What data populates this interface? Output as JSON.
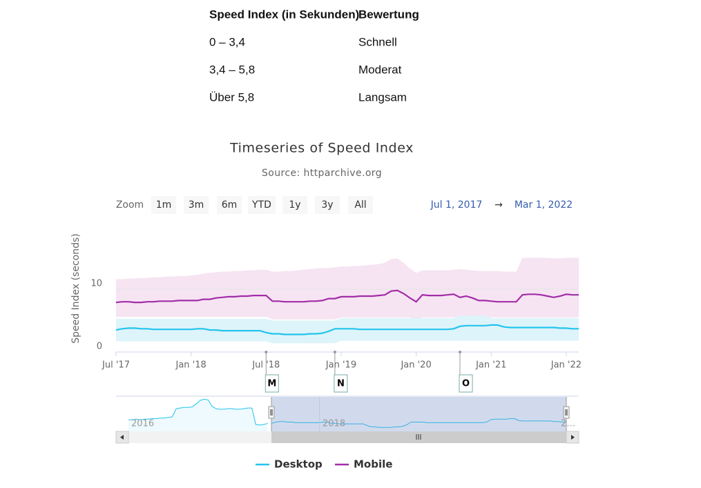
{
  "table": {
    "header": [
      "Speed Index (in Sekunden)",
      "Bewertung"
    ],
    "rows": [
      [
        "0 – 3,4",
        "Schnell"
      ],
      [
        "3,4 – 5,8",
        "Moderat"
      ],
      [
        "Über 5,8",
        "Langsam"
      ]
    ]
  },
  "chart_data": {
    "type": "line",
    "title": "Timeseries of Speed Index",
    "subtitle": "Source: httparchive.org",
    "y_label": "Speed Index (seconds)",
    "x": [
      "2017-07-01",
      "2017-07-15",
      "2017-08-01",
      "2017-08-15",
      "2017-09-01",
      "2017-09-15",
      "2017-10-01",
      "2017-10-15",
      "2017-11-01",
      "2017-11-15",
      "2017-12-01",
      "2017-12-15",
      "2018-01-01",
      "2018-01-15",
      "2018-02-01",
      "2018-02-15",
      "2018-03-01",
      "2018-03-15",
      "2018-04-01",
      "2018-04-15",
      "2018-05-01",
      "2018-05-15",
      "2018-06-01",
      "2018-06-15",
      "2018-07-01",
      "2018-07-15",
      "2018-08-01",
      "2018-08-15",
      "2018-09-01",
      "2018-09-15",
      "2018-10-01",
      "2018-10-15",
      "2018-11-01",
      "2018-11-15",
      "2018-12-01",
      "2018-12-15",
      "2019-01-01",
      "2019-02-01",
      "2019-03-01",
      "2019-04-01",
      "2019-05-01",
      "2019-06-01",
      "2019-07-01",
      "2019-08-01",
      "2019-09-01",
      "2019-10-01",
      "2019-11-01",
      "2019-12-01",
      "2020-01-01",
      "2020-02-01",
      "2020-03-01",
      "2020-04-01",
      "2020-05-01",
      "2020-06-01",
      "2020-07-01",
      "2020-08-01",
      "2020-09-01",
      "2020-10-01",
      "2020-11-01",
      "2020-12-01",
      "2021-01-01",
      "2021-02-01",
      "2021-03-01",
      "2021-04-01",
      "2021-05-01",
      "2021-06-01",
      "2021-07-01",
      "2021-08-01",
      "2021-09-01",
      "2021-10-01",
      "2021-11-01",
      "2021-12-01",
      "2022-01-01",
      "2022-02-01",
      "2022-03-01"
    ],
    "xticks": [
      {
        "value": "2017-07-01",
        "label": "Jul '17"
      },
      {
        "value": "2018-01-01",
        "label": "Jan '18"
      },
      {
        "value": "2018-07-01",
        "label": "Jul '18"
      },
      {
        "value": "2019-01-01",
        "label": "Jan '19"
      },
      {
        "value": "2020-01-01",
        "label": "Jan '20"
      },
      {
        "value": "2021-01-01",
        "label": "Jan '21"
      },
      {
        "value": "2022-01-01",
        "label": "Jan '22"
      }
    ],
    "ylim": [
      0,
      20
    ],
    "yticks": [
      0,
      10
    ],
    "grid": true,
    "series": [
      {
        "name": "Desktop",
        "color": "#21c4ee",
        "values": [
          3.5,
          3.7,
          3.8,
          3.8,
          3.7,
          3.7,
          3.6,
          3.6,
          3.6,
          3.6,
          3.6,
          3.6,
          3.6,
          3.7,
          3.7,
          3.5,
          3.5,
          3.4,
          3.4,
          3.4,
          3.4,
          3.4,
          3.4,
          3.4,
          3.1,
          2.9,
          2.9,
          2.8,
          2.8,
          2.8,
          2.8,
          2.9,
          2.9,
          3.0,
          3.3,
          3.7,
          3.7,
          3.7,
          3.7,
          3.6,
          3.6,
          3.6,
          3.6,
          3.6,
          3.6,
          3.6,
          3.6,
          3.6,
          3.6,
          3.6,
          3.6,
          3.6,
          3.6,
          3.6,
          3.7,
          4.1,
          4.2,
          4.2,
          4.2,
          4.2,
          4.3,
          4.3,
          4.0,
          3.9,
          3.9,
          3.9,
          3.9,
          3.9,
          3.9,
          3.9,
          3.9,
          3.8,
          3.8,
          3.7,
          3.7
        ],
        "band": {
          "color": "#ddf4fa",
          "low": [
            1.7,
            1.7,
            1.7,
            1.7,
            1.7,
            1.7,
            1.7,
            1.7,
            1.7,
            1.7,
            1.7,
            1.7,
            1.7,
            1.7,
            1.7,
            1.7,
            1.7,
            1.7,
            1.7,
            1.7,
            1.7,
            1.7,
            1.7,
            1.7,
            1.7,
            1.4,
            1.4,
            1.4,
            1.4,
            1.4,
            1.4,
            1.4,
            1.4,
            1.4,
            1.4,
            1.4,
            1.8,
            1.8,
            1.8,
            1.8,
            1.8,
            1.8,
            1.8,
            1.8,
            1.8,
            1.8,
            1.8,
            1.8,
            1.8,
            1.8,
            1.8,
            1.8,
            1.8,
            1.8,
            1.8,
            1.8,
            1.8,
            1.8,
            1.8,
            1.8,
            1.8,
            1.8,
            1.8,
            1.8,
            1.8,
            1.8,
            1.8,
            1.8,
            1.8,
            1.8,
            1.8,
            1.8,
            1.8,
            1.8,
            1.8
          ],
          "high": [
            5.3,
            5.3,
            5.3,
            5.3,
            5.3,
            5.3,
            5.3,
            5.3,
            5.3,
            5.3,
            5.3,
            5.3,
            5.3,
            5.3,
            5.3,
            5.3,
            5.3,
            5.3,
            5.3,
            5.3,
            5.3,
            5.3,
            5.3,
            5.3,
            5.3,
            5.0,
            5.0,
            5.0,
            5.0,
            5.0,
            5.0,
            5.0,
            5.0,
            5.0,
            5.0,
            5.0,
            5.4,
            5.4,
            5.4,
            5.4,
            5.4,
            5.4,
            5.4,
            5.4,
            5.4,
            5.4,
            5.4,
            5.4,
            5.4,
            5.4,
            5.4,
            5.4,
            5.4,
            5.4,
            5.4,
            5.8,
            5.8,
            5.8,
            5.8,
            5.8,
            5.4,
            5.4,
            5.4,
            5.4,
            5.4,
            5.4,
            5.4,
            5.4,
            5.4,
            5.4,
            5.4,
            5.4,
            5.4,
            5.4,
            5.4
          ]
        }
      },
      {
        "name": "Mobile",
        "color": "#a22ca8",
        "values": [
          7.9,
          8.0,
          8.0,
          7.9,
          7.9,
          8.0,
          8.0,
          8.1,
          8.1,
          8.1,
          8.2,
          8.2,
          8.2,
          8.2,
          8.4,
          8.4,
          8.6,
          8.7,
          8.8,
          8.8,
          8.9,
          8.9,
          9.0,
          9.0,
          9.0,
          8.1,
          8.1,
          8.0,
          8.0,
          8.0,
          8.0,
          8.1,
          8.1,
          8.2,
          8.5,
          8.5,
          8.8,
          8.8,
          8.8,
          8.9,
          8.9,
          8.9,
          9.0,
          9.1,
          9.7,
          9.8,
          9.3,
          8.6,
          8.0,
          9.1,
          9.0,
          9.0,
          9.0,
          9.1,
          9.2,
          8.7,
          8.9,
          8.6,
          8.2,
          8.2,
          8.1,
          8.0,
          8.0,
          8.0,
          8.0,
          9.1,
          9.2,
          9.2,
          9.1,
          8.9,
          8.7,
          8.9,
          9.2,
          9.1,
          9.1
        ],
        "band": {
          "color": "#f6e4f2",
          "low": [
            5.6,
            5.6,
            5.6,
            5.6,
            5.6,
            5.6,
            5.6,
            5.6,
            5.6,
            5.6,
            5.6,
            5.6,
            5.6,
            5.6,
            5.6,
            5.6,
            5.6,
            5.6,
            5.6,
            5.6,
            5.6,
            5.6,
            5.6,
            5.6,
            5.6,
            5.2,
            5.2,
            5.2,
            5.2,
            5.2,
            5.2,
            5.2,
            5.2,
            5.2,
            5.2,
            5.2,
            5.5,
            5.5,
            5.5,
            5.5,
            5.5,
            5.5,
            5.5,
            5.5,
            5.5,
            5.5,
            5.5,
            5.5,
            4.9,
            5.5,
            5.5,
            5.5,
            5.5,
            5.5,
            5.5,
            5.5,
            5.5,
            5.5,
            5.5,
            5.5,
            5.5,
            5.5,
            5.5,
            5.5,
            5.5,
            5.5,
            5.5,
            5.5,
            5.5,
            5.5,
            5.5,
            5.5,
            5.5,
            5.5,
            5.5
          ],
          "high": [
            11.6,
            11.6,
            11.7,
            11.7,
            11.8,
            11.8,
            11.9,
            11.9,
            12.0,
            12.0,
            12.1,
            12.1,
            12.2,
            12.3,
            12.5,
            12.6,
            12.7,
            12.8,
            12.8,
            12.9,
            12.9,
            13.0,
            13.0,
            13.1,
            13.1,
            12.8,
            12.8,
            12.9,
            12.9,
            13.0,
            13.1,
            13.2,
            13.3,
            13.4,
            13.4,
            13.5,
            13.6,
            13.6,
            13.7,
            13.7,
            13.8,
            13.9,
            14.0,
            14.2,
            14.8,
            14.9,
            14.2,
            13.3,
            12.6,
            13.0,
            13.0,
            13.0,
            13.0,
            13.0,
            13.1,
            13.2,
            13.1,
            13.0,
            12.9,
            12.9,
            12.9,
            12.9,
            12.8,
            12.8,
            12.8,
            15.0,
            15.0,
            15.0,
            15.0,
            15.0,
            14.9,
            14.9,
            15.0,
            15.0,
            15.0
          ]
        }
      }
    ],
    "flags": [
      {
        "x": "2018-07-01",
        "title": "M"
      },
      {
        "x": "2018-12-15",
        "title": "N"
      },
      {
        "x": "2020-08-01",
        "title": "O"
      }
    ],
    "range_selector": {
      "label": "Zoom",
      "buttons": [
        "1m",
        "3m",
        "6m",
        "YTD",
        "1y",
        "3y",
        "All"
      ],
      "from": "Jul 1, 2017",
      "arrow": "→",
      "to": "Mar 1, 2022"
    },
    "navigator": {
      "x": [
        "2016-01-01",
        "2016-01-15",
        "2016-02-01",
        "2016-02-15",
        "2016-03-01",
        "2016-03-15",
        "2016-04-01",
        "2016-04-15",
        "2016-05-01",
        "2016-05-15",
        "2016-06-01",
        "2016-06-15",
        "2016-07-01",
        "2016-07-15",
        "2016-08-01",
        "2016-08-15",
        "2016-09-01",
        "2016-09-15",
        "2016-10-01",
        "2016-10-15",
        "2016-11-01",
        "2016-11-15",
        "2016-12-01",
        "2016-12-15",
        "2017-01-01",
        "2017-01-15",
        "2017-02-01",
        "2017-02-15",
        "2017-03-01",
        "2017-03-15",
        "2017-04-01",
        "2017-04-15",
        "2017-05-01",
        "2017-05-15",
        "2017-06-01",
        "2017-06-15"
      ],
      "values": [
        4.1,
        4.1,
        4.2,
        4.1,
        4.2,
        4.2,
        4.3,
        4.3,
        4.4,
        4.4,
        4.5,
        4.6,
        6.0,
        6.1,
        6.2,
        6.2,
        6.3,
        6.8,
        7.4,
        7.6,
        7.5,
        6.4,
        6.0,
        5.9,
        5.9,
        6.0,
        6.0,
        5.9,
        5.9,
        6.0,
        6.1,
        6.1,
        3.3,
        3.2,
        3.3,
        3.5
      ],
      "labels": [
        "2016",
        "2018",
        "2…"
      ]
    }
  }
}
